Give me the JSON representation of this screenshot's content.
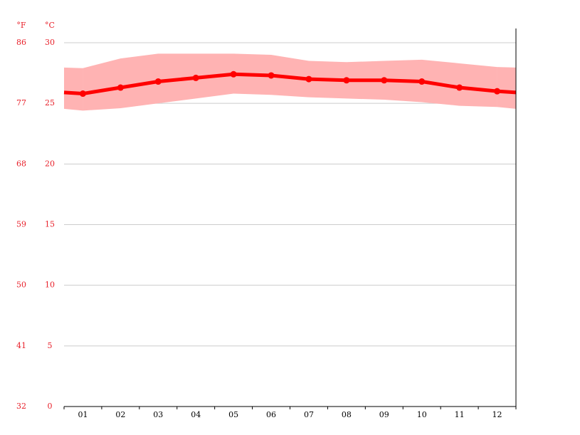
{
  "chart_data": {
    "type": "line",
    "y_label": "°C",
    "y2_label": "°F",
    "categories": [
      "01",
      "02",
      "03",
      "04",
      "05",
      "06",
      "07",
      "08",
      "09",
      "10",
      "11",
      "12"
    ],
    "series": [
      {
        "color": "#ff0000",
        "values": [
          25.8,
          26.3,
          26.8,
          27.1,
          27.4,
          27.3,
          27.0,
          26.9,
          26.9,
          26.8,
          26.3,
          26.0
        ]
      }
    ],
    "band": {
      "color": "#ffb3b3",
      "high": [
        27.9,
        28.7,
        29.1,
        29.1,
        29.1,
        29.0,
        28.5,
        28.4,
        28.5,
        28.6,
        28.3,
        28.0
      ],
      "low": [
        24.4,
        24.6,
        25.0,
        25.4,
        25.8,
        25.7,
        25.5,
        25.4,
        25.3,
        25.1,
        24.8,
        24.7
      ]
    },
    "ylim": [
      0,
      30
    ],
    "yticks": [
      0,
      5,
      10,
      15,
      20,
      25,
      30
    ],
    "y2lim": [
      32,
      86
    ],
    "y2ticks": [
      32,
      41,
      50,
      59,
      68,
      77,
      86
    ],
    "grid": true
  }
}
